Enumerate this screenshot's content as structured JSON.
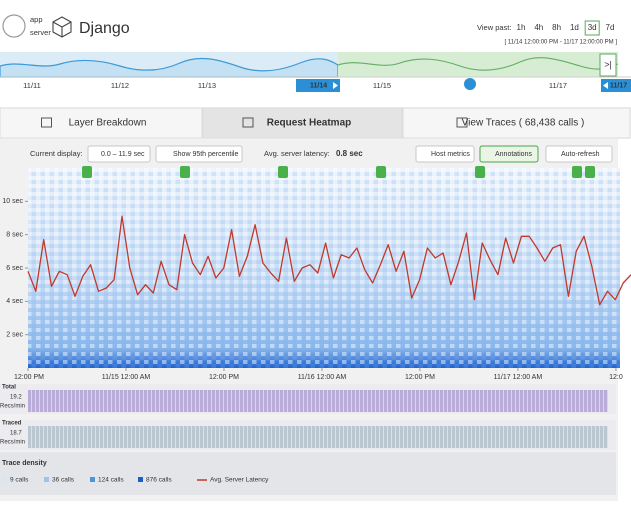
{
  "header": {
    "app_label": "app",
    "server_label": "server",
    "title": "Django",
    "view_past_label": "View past:",
    "ranges": [
      {
        "label": "1h",
        "selected": false
      },
      {
        "label": "4h",
        "selected": false
      },
      {
        "label": "8h",
        "selected": false
      },
      {
        "label": "1d",
        "selected": false
      },
      {
        "label": "3d",
        "selected": true
      },
      {
        "label": "7d",
        "selected": false
      }
    ],
    "range_text": "[ 11/14 12:00:00 PM - 11/17 12:00:00 PM ]"
  },
  "timeline": {
    "labels": [
      "11/11",
      "11/12",
      "11/13",
      "11/15",
      "11/17"
    ],
    "start_tag": "11/14",
    "end_tag": "11/17"
  },
  "tabs": [
    {
      "label": "Layer Breakdown",
      "selected": false
    },
    {
      "label": "Request Heatmap",
      "selected": true
    },
    {
      "label": "View Traces ( 68,438 calls )",
      "selected": false
    }
  ],
  "toolbar": {
    "current_display_label": "Current display:",
    "display_range": "0.0 – 11.9 sec",
    "percentile_button": "Show 95th percentile",
    "latency_label": "Avg. server latency:",
    "latency_value": "0.8 sec",
    "right_buttons": [
      {
        "label": "Host metrics",
        "active": false
      },
      {
        "label": "Annotations",
        "active": true
      },
      {
        "label": "Auto-refresh",
        "active": false
      }
    ]
  },
  "chart_data": {
    "type": "line",
    "series": [
      {
        "name": "Avg. Server Latency",
        "color": "#c0392b",
        "values": [
          5.8,
          4.6,
          7.7,
          4.9,
          5.8,
          5.6,
          4.3,
          5.5,
          6.2,
          4.6,
          4.8,
          5.3,
          9.1,
          6.0,
          4.4,
          5.0,
          4.5,
          6.4,
          5.0,
          4.7,
          8.0,
          6.3,
          5.6,
          6.7,
          5.4,
          6.0,
          8.3,
          5.5,
          6.7,
          8.6,
          6.3,
          5.7,
          5.2,
          7.8,
          5.2,
          6.0,
          6.2,
          5.7,
          7.5,
          5.4,
          6.8,
          6.6,
          7.2,
          5.9,
          5.1,
          6.2,
          7.4,
          5.8,
          7.0,
          4.2,
          5.3,
          7.2,
          6.6,
          6.9,
          5.0,
          6.4,
          8.1,
          4.1,
          7.5,
          6.5,
          5.6,
          7.8,
          6.3,
          7.9,
          7.9,
          7.2,
          6.4,
          7.2,
          7.4,
          4.3,
          7.0,
          7.9,
          6.1,
          3.8,
          4.6,
          4.1,
          5.1,
          5.6
        ]
      }
    ],
    "ylim": [
      0,
      12
    ],
    "yticks": [
      {
        "value": 2,
        "label": "2 sec"
      },
      {
        "value": 4,
        "label": "4 sec"
      },
      {
        "value": 6,
        "label": "6 sec"
      },
      {
        "value": 8,
        "label": "8 sec"
      },
      {
        "value": 10,
        "label": "10 sec"
      }
    ],
    "xlim": [
      0,
      72.5
    ],
    "xticks": [
      {
        "value": 0,
        "label": "12:00 PM"
      },
      {
        "value": 12,
        "label": "11/15 12:00 AM"
      },
      {
        "value": 24,
        "label": "12:00 PM"
      },
      {
        "value": 36,
        "label": "11/16 12:00 AM"
      },
      {
        "value": 48,
        "label": "12:00 PM"
      },
      {
        "value": 60,
        "label": "11/17 12:00 AM"
      },
      {
        "value": 72,
        "label": "12:0"
      }
    ]
  },
  "density_panels": [
    {
      "title": "Total",
      "value": "19.2",
      "unit": "Recs/min",
      "color": "#b9acd9"
    },
    {
      "title": "Traced",
      "value": "18.7",
      "unit": "Recs/min",
      "color": "#bac7d0"
    }
  ],
  "legend": {
    "title": "Trace density",
    "items": [
      {
        "label": "9 calls",
        "color": "#d6e6f7"
      },
      {
        "label": "36 calls",
        "color": "#9cc3ee"
      },
      {
        "label": "124 calls",
        "color": "#4d93e0"
      },
      {
        "label": "876 calls",
        "color": "#1a5fc8"
      }
    ]
  }
}
